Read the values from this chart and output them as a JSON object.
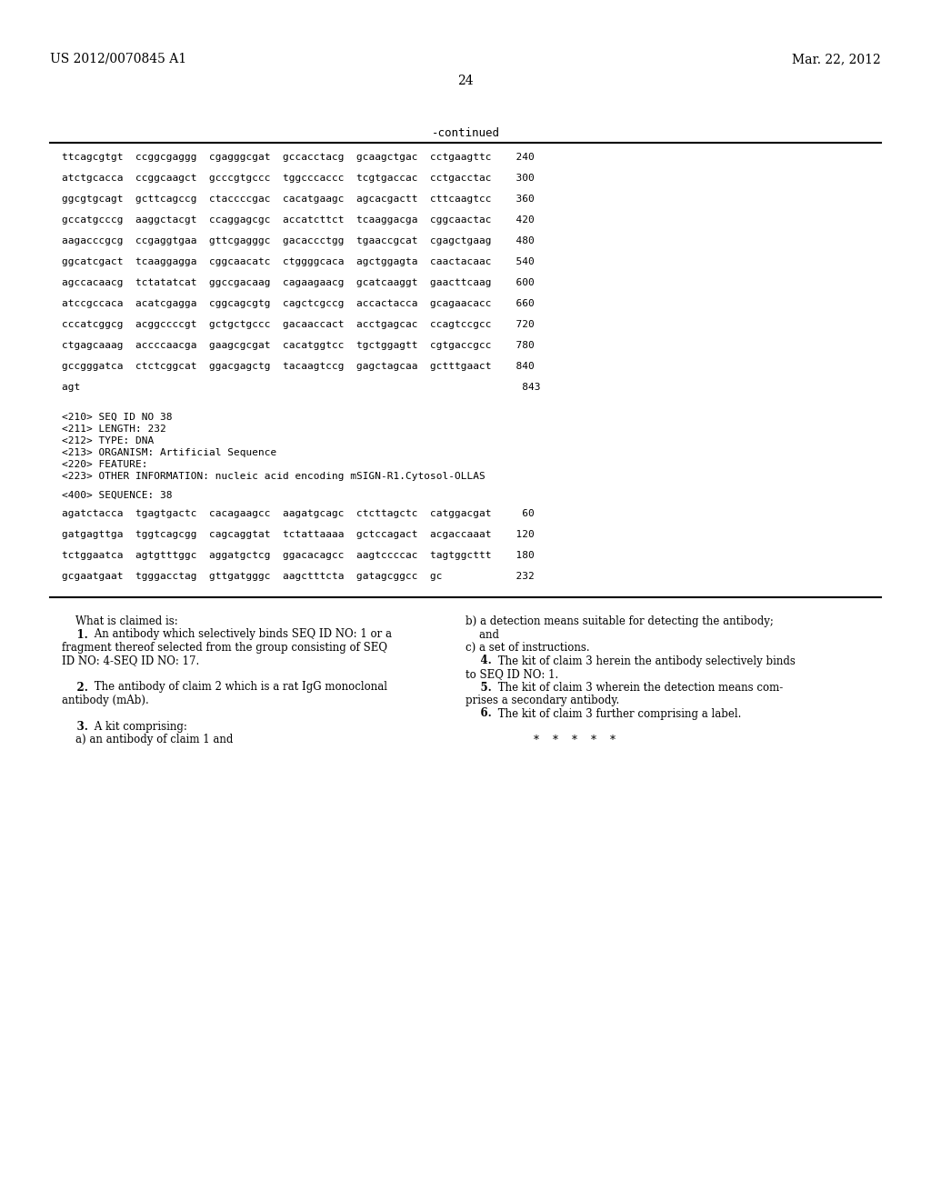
{
  "header_left": "US 2012/0070845 A1",
  "header_right": "Mar. 22, 2012",
  "page_number": "24",
  "continued_label": "-continued",
  "background_color": "#ffffff",
  "text_color": "#000000",
  "sequence_lines": [
    "ttcagcgtgt  ccggcgaggg  cgagggcgat  gccacctacg  gcaagctgac  cctgaagttc    240",
    "atctgcacca  ccggcaagct  gcccgtgccc  tggcccaccc  tcgtgaccac  cctgacctac    300",
    "ggcgtgcagt  gcttcagccg  ctaccccgac  cacatgaagc  agcacgactt  cttcaagtcc    360",
    "gccatgcccg  aaggctacgt  ccaggagcgc  accatcttct  tcaaggacga  cggcaactac    420",
    "aagacccgcg  ccgaggtgaa  gttcgagggc  gacaccctgg  tgaaccgcat  cgagctgaag    480",
    "ggcatcgact  tcaaggagga  cggcaacatc  ctggggcaca  agctggagta  caactacaac    540",
    "agccacaacg  tctatatcat  ggccgacaag  cagaagaacg  gcatcaaggt  gaacttcaag    600",
    "atccgccaca  acatcgagga  cggcagcgtg  cagctcgccg  accactacca  gcagaacacc    660",
    "cccatcggcg  acggccccgt  gctgctgccc  gacaaccact  acctgagcac  ccagtccgcc    720",
    "ctgagcaaag  accccaacga  gaagcgcgat  cacatggtcc  tgctggagtt  cgtgaccgcc    780",
    "gccgggatca  ctctcggcat  ggacgagctg  tacaagtccg  gagctagcaa  gctttgaact    840",
    "agt                                                                        843"
  ],
  "seq_info_lines": [
    "<210> SEQ ID NO 38",
    "<211> LENGTH: 232",
    "<212> TYPE: DNA",
    "<213> ORGANISM: Artificial Sequence",
    "<220> FEATURE:",
    "<223> OTHER INFORMATION: nucleic acid encoding mSIGN-R1.Cytosol-OLLAS"
  ],
  "seq400_label": "<400> SEQUENCE: 38",
  "seq400_lines": [
    "agatctacca  tgagtgactc  cacagaagcc  aagatgcagc  ctcttagctc  catggacgat     60",
    "gatgagttga  tggtcagcgg  cagcaggtat  tctattaaaa  gctccagact  acgaccaaat    120",
    "tctggaatca  agtgtttggc  aggatgctcg  ggacacagcc  aagtccccac  tagtggcttt    180",
    "gcgaatgaat  tgggacctag  gttgatgggc  aagctttcta  gatagcggcc  gc            232"
  ],
  "claims_left_lines": [
    [
      "normal",
      "    What is claimed is:"
    ],
    [
      "bold_num",
      "    1.",
      " An antibody which selectively binds SEQ ID NO: 1 or a"
    ],
    [
      "normal",
      "fragment thereof selected from the group consisting of SEQ"
    ],
    [
      "normal",
      "ID NO: 4-SEQ ID NO: 17."
    ],
    [
      "blank",
      ""
    ],
    [
      "bold_num",
      "    2.",
      " The antibody of claim 2 which is a rat IgG monoclonal"
    ],
    [
      "normal",
      "antibody (mAb)."
    ],
    [
      "blank",
      ""
    ],
    [
      "bold_num",
      "    3.",
      " A kit comprising:"
    ],
    [
      "normal",
      "    a) an antibody of claim 1 and"
    ]
  ],
  "claims_right_lines": [
    [
      "normal",
      "b) a detection means suitable for detecting the antibody;"
    ],
    [
      "normal",
      "    and"
    ],
    [
      "normal",
      "c) a set of instructions."
    ],
    [
      "bold_num",
      "    4.",
      " The kit of claim 3 herein the antibody selectively binds"
    ],
    [
      "normal",
      "to SEQ ID NO: 1."
    ],
    [
      "bold_num",
      "    5.",
      " The kit of claim 3 wherein the detection means com-"
    ],
    [
      "normal",
      "prises a secondary antibody."
    ],
    [
      "bold_num",
      "    6.",
      " The kit of claim 3 further comprising a label."
    ],
    [
      "blank",
      ""
    ],
    [
      "normal",
      "                    *    *    *    *    *"
    ]
  ]
}
